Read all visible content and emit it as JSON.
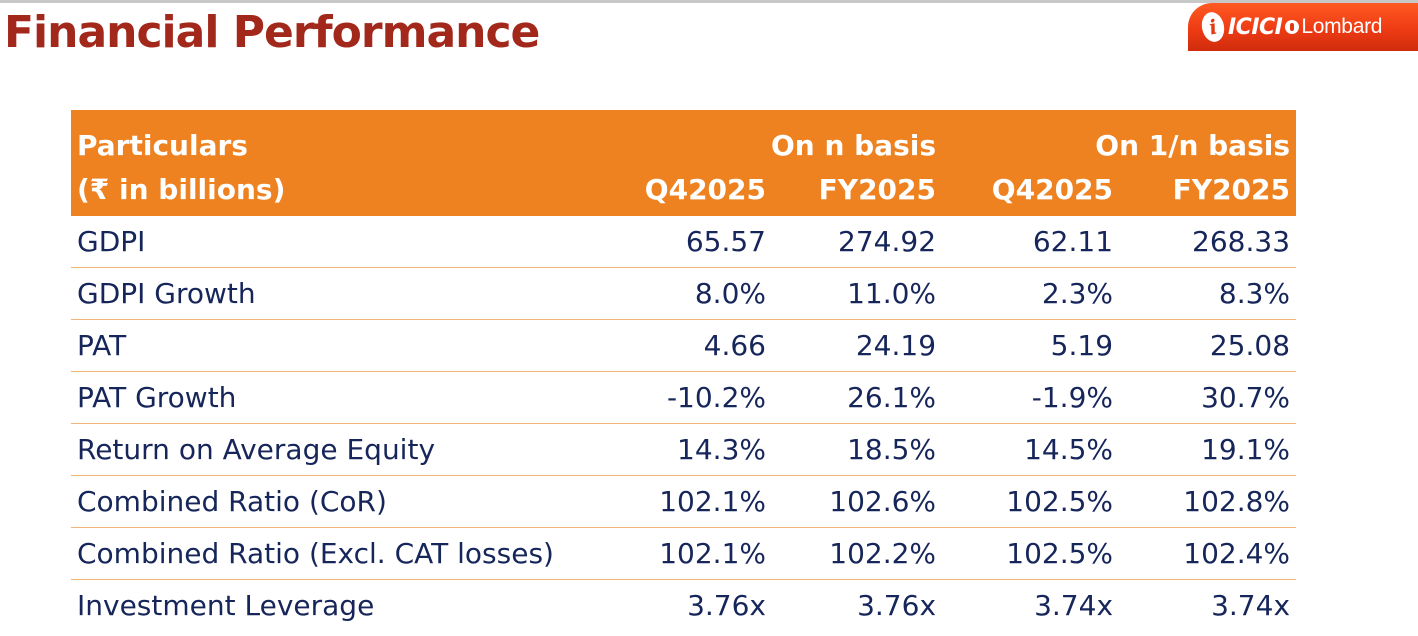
{
  "header": {
    "title": "Financial Performance",
    "logo": {
      "text_icici": "ICICI",
      "text_lombard": "Lombard",
      "mark": "i",
      "color": "#ee3b14"
    }
  },
  "colors": {
    "title": "#a3281c",
    "table_header_bg": "#ee8120",
    "body_text": "#17265a",
    "row_divider": "#f3b37a"
  },
  "table": {
    "header": {
      "particulars": "Particulars",
      "unit": "(₹ in billions)",
      "group1": "On n basis",
      "group2": "On 1/n basis",
      "columns": [
        "Q42025",
        "FY2025",
        "Q42025",
        "FY2025"
      ]
    },
    "rows": [
      {
        "label": "GDPI",
        "values": [
          "65.57",
          "274.92",
          "62.11",
          "268.33"
        ]
      },
      {
        "label": "GDPI Growth",
        "values": [
          "8.0%",
          "11.0%",
          "2.3%",
          "8.3%"
        ]
      },
      {
        "label": "PAT",
        "values": [
          "4.66",
          "24.19",
          "5.19",
          "25.08"
        ]
      },
      {
        "label": "PAT Growth",
        "values": [
          "-10.2%",
          "26.1%",
          "-1.9%",
          "30.7%"
        ]
      },
      {
        "label": "Return on Average Equity",
        "values": [
          "14.3%",
          "18.5%",
          "14.5%",
          "19.1%"
        ]
      },
      {
        "label": "Combined Ratio (CoR)",
        "values": [
          "102.1%",
          "102.6%",
          "102.5%",
          "102.8%"
        ]
      },
      {
        "label": "Combined Ratio (Excl. CAT losses)",
        "values": [
          "102.1%",
          "102.2%",
          "102.5%",
          "102.4%"
        ]
      },
      {
        "label": "Investment Leverage",
        "values": [
          "3.76x",
          "3.76x",
          "3.74x",
          "3.74x"
        ]
      }
    ]
  }
}
